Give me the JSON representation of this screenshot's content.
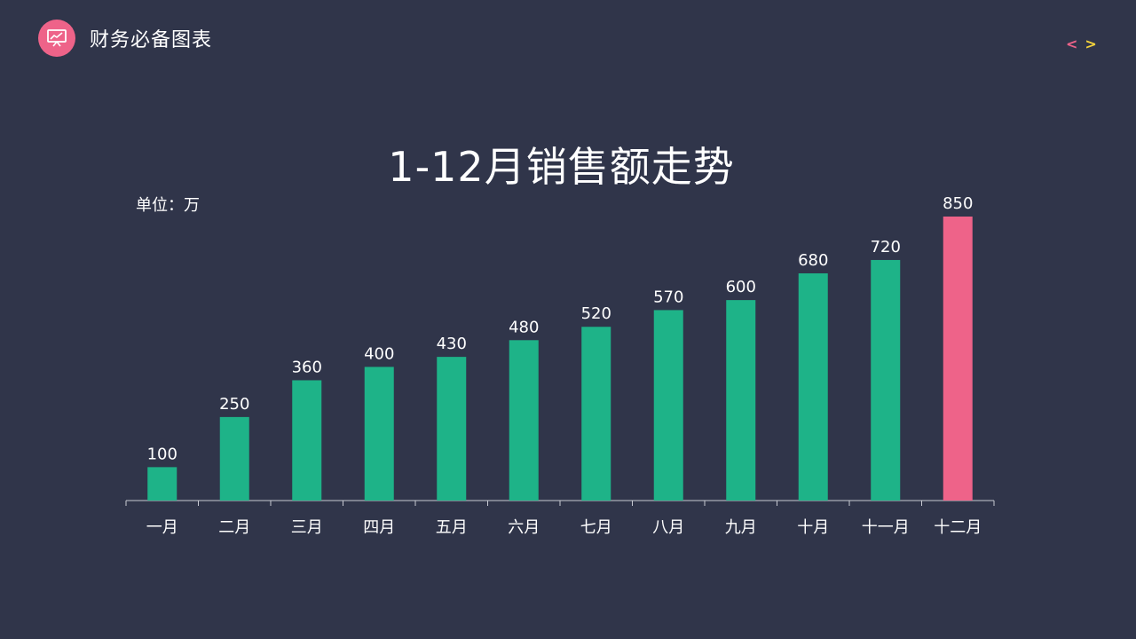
{
  "header": {
    "title": "财务必备图表",
    "logo_icon": "presentation-chart-icon",
    "prev_icon": "chevron-left-icon",
    "next_icon": "chevron-right-icon"
  },
  "colors": {
    "background": "#30354a",
    "bar": "#1eb388",
    "highlight_bar": "#ee6389",
    "logo": "#ee6389",
    "prev_arrow": "#ee6389",
    "next_arrow": "#f5d33b",
    "axis": "#c8cad3"
  },
  "chart_data": {
    "type": "bar",
    "title": "1-12月销售额走势",
    "unit_label": "单位：万",
    "xlabel": "",
    "ylabel": "",
    "ylim": [
      0,
      900
    ],
    "grid": false,
    "legend": "none",
    "categories": [
      "一月",
      "二月",
      "三月",
      "四月",
      "五月",
      "六月",
      "七月",
      "八月",
      "九月",
      "十月",
      "十一月",
      "十二月"
    ],
    "series": [
      {
        "values": [
          100,
          250,
          360,
          400,
          430,
          480,
          520,
          570,
          600,
          680,
          720,
          850
        ]
      }
    ],
    "highlight_category": "十二月"
  }
}
